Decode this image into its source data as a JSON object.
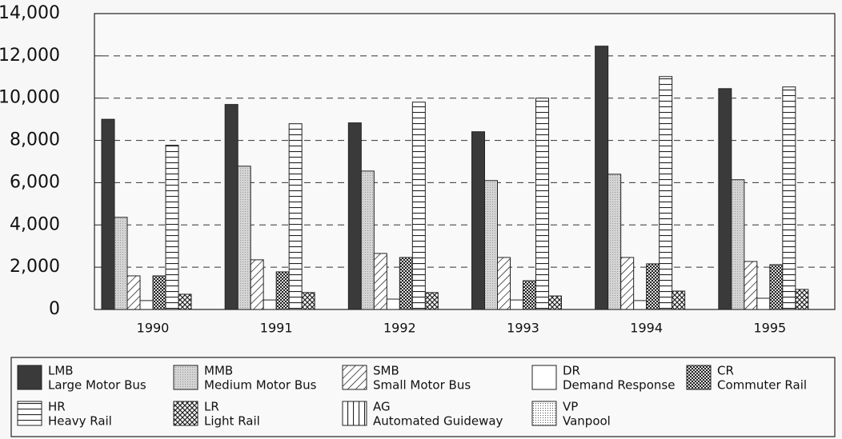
{
  "chart_data": {
    "type": "bar",
    "categories": [
      "1990",
      "1991",
      "1992",
      "1993",
      "1994",
      "1995"
    ],
    "series": [
      {
        "name": "LMB",
        "full_name": "Large Motor Bus",
        "color": "#333333",
        "pattern": "solid",
        "values": [
          9000,
          9700,
          8830,
          8410,
          12460,
          10450
        ]
      },
      {
        "name": "MMB",
        "full_name": "Medium Motor Bus",
        "color": "#d0d0d0",
        "pattern": "stipple",
        "values": [
          4360,
          6780,
          6550,
          6100,
          6400,
          6140
        ]
      },
      {
        "name": "SMB",
        "full_name": "Small Motor Bus",
        "color": "#ffffff",
        "pattern": "diagonal",
        "values": [
          1590,
          2350,
          2650,
          2460,
          2460,
          2270
        ]
      },
      {
        "name": "DR",
        "full_name": "Demand Response",
        "color": "#ffffff",
        "pattern": "none",
        "values": [
          420,
          450,
          490,
          450,
          420,
          530
        ]
      },
      {
        "name": "CR",
        "full_name": "Commuter Rail",
        "color": "#555555",
        "pattern": "checker",
        "values": [
          1590,
          1780,
          2460,
          1360,
          2160,
          2120
        ]
      },
      {
        "name": "HR",
        "full_name": "Heavy Rail",
        "color": "#ffffff",
        "pattern": "horizontal",
        "values": [
          7770,
          8790,
          9810,
          10000,
          11020,
          10530
        ]
      },
      {
        "name": "LR",
        "full_name": "Light Rail",
        "color": "#ffffff",
        "pattern": "crosshatch",
        "values": [
          720,
          800,
          800,
          640,
          870,
          950
        ]
      },
      {
        "name": "AG",
        "full_name": "Automated Guideway",
        "color": "#ffffff",
        "pattern": "vertical",
        "values": [
          0,
          0,
          0,
          0,
          0,
          0
        ]
      },
      {
        "name": "VP",
        "full_name": "Vanpool",
        "color": "#ffffff",
        "pattern": "dots",
        "values": [
          0,
          0,
          0,
          0,
          0,
          0
        ]
      }
    ],
    "ylim": [
      0,
      14000
    ],
    "yticks": [
      {
        "value": 0,
        "label": "0"
      },
      {
        "value": 2000,
        "label": "2,000"
      },
      {
        "value": 4000,
        "label": "4,000"
      },
      {
        "value": 6000,
        "label": "6,000"
      },
      {
        "value": 8000,
        "label": "8,000"
      },
      {
        "value": 10000,
        "label": "10,000"
      },
      {
        "value": 12000,
        "label": "12,000"
      },
      {
        "value": 14000,
        "label": "14,000"
      }
    ],
    "grid": true,
    "legend": "bottom"
  }
}
